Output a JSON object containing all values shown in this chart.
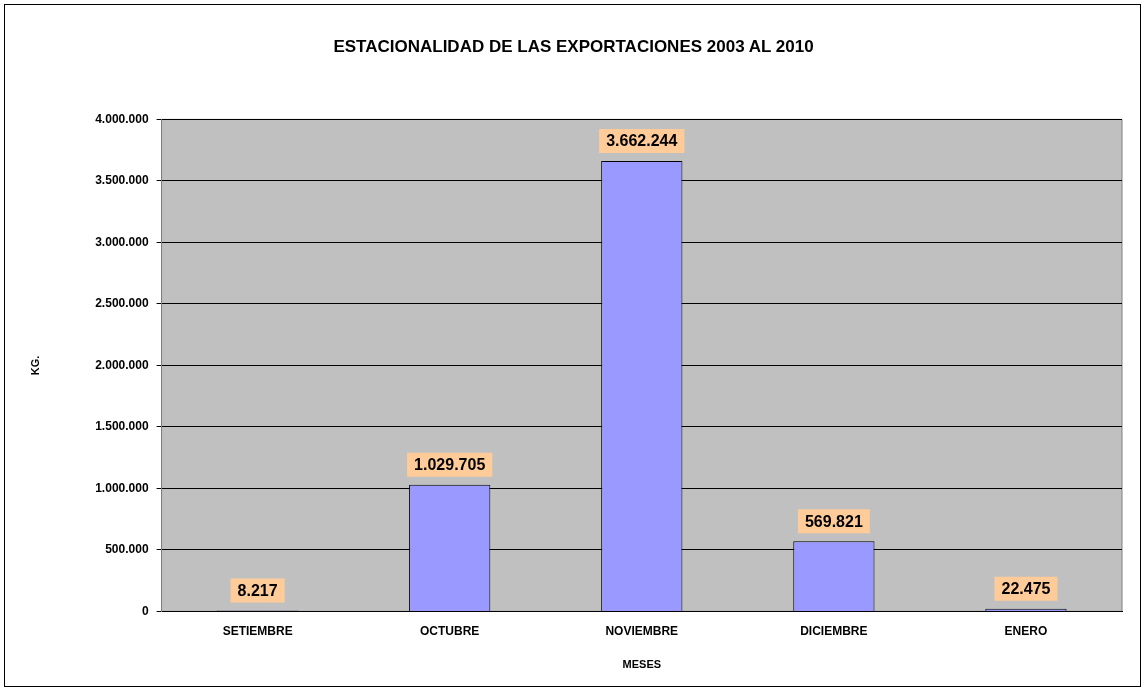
{
  "chart_data": {
    "type": "bar",
    "title": "ESTACIONALIDAD DE LAS EXPORTACIONES 2003 AL 2010",
    "xlabel": "MESES",
    "ylabel": "KG.",
    "categories": [
      "SETIEMBRE",
      "OCTUBRE",
      "NOVIEMBRE",
      "DICIEMBRE",
      "ENERO"
    ],
    "values": [
      8217,
      1029705,
      3662244,
      569821,
      22475
    ],
    "value_labels": [
      "8.217",
      "1.029.705",
      "3.662.244",
      "569.821",
      "22.475"
    ],
    "color": "#9999ff",
    "ylim": [
      0,
      4000000
    ],
    "yticks": [
      {
        "value": 0,
        "label": "0"
      },
      {
        "value": 500000,
        "label": "500.000"
      },
      {
        "value": 1000000,
        "label": "1.000.000"
      },
      {
        "value": 1500000,
        "label": "1.500.000"
      },
      {
        "value": 2000000,
        "label": "2.000.000"
      },
      {
        "value": 2500000,
        "label": "2.500.000"
      },
      {
        "value": 3000000,
        "label": "3.000.000"
      },
      {
        "value": 3500000,
        "label": "3.500.000"
      },
      {
        "value": 4000000,
        "label": "4.000.000"
      }
    ],
    "grid": "y",
    "legend": false
  }
}
